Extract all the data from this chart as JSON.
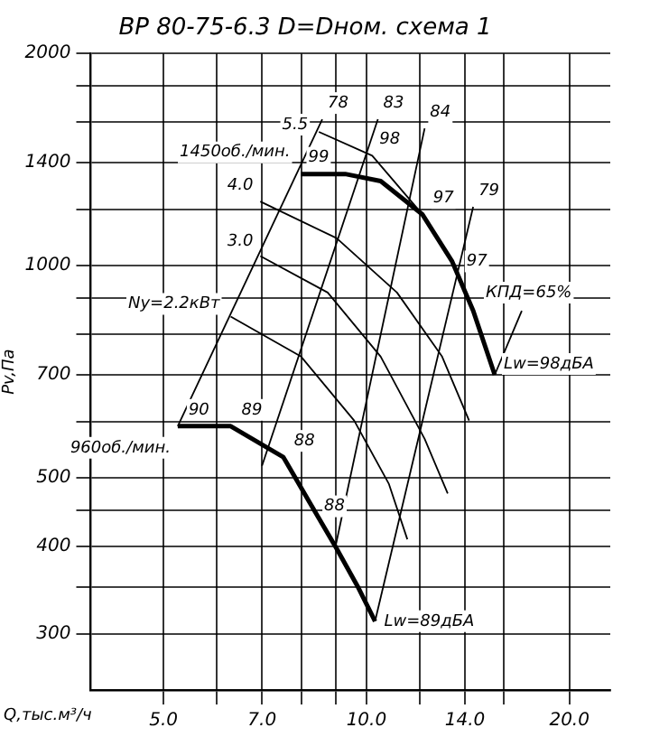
{
  "chart_data": {
    "type": "line",
    "title": "ВР 80-75-6.3 D=Dном. схема 1",
    "xlabel": "Q,тыс.м³/ч",
    "ylabel": "Pv,Па",
    "log": "xy",
    "grid": true,
    "legend": false,
    "marker": "none",
    "line_style": "solid",
    "xlim": [
      3.9,
      23
    ],
    "ylim": [
      250,
      2000
    ],
    "xticks": [
      {
        "value": 5,
        "label": "5.0"
      },
      {
        "value": 6,
        "label": null
      },
      {
        "value": 7,
        "label": "7.0"
      },
      {
        "value": 8,
        "label": null
      },
      {
        "value": 9,
        "label": null
      },
      {
        "value": 10,
        "label": "10.0"
      },
      {
        "value": 12,
        "label": null
      },
      {
        "value": 14,
        "label": "14.0"
      },
      {
        "value": 16,
        "label": null
      },
      {
        "value": 20,
        "label": "20.0"
      }
    ],
    "yticks": [
      300,
      {
        "value": 350,
        "label": null
      },
      400,
      {
        "value": 450,
        "label": null
      },
      500,
      {
        "value": 600,
        "label": null
      },
      700,
      {
        "value": 800,
        "label": null
      },
      {
        "value": 900,
        "label": null
      },
      1000,
      {
        "value": 1200,
        "label": null
      },
      1400,
      {
        "value": 1600,
        "label": null
      },
      {
        "value": 1800,
        "label": null
      },
      2000
    ],
    "series": [
      {
        "color": "#000000",
        "x": [
          8.0,
          9.3,
          10.5,
          12.1,
          13.4,
          14.4,
          15.5
        ],
        "values": [
          1349,
          1349,
          1318,
          1183,
          1014,
          863,
          700
        ]
      },
      {
        "color": "#000000",
        "x": [
          5.25,
          6.29,
          7.53,
          8.24,
          9.03,
          9.7,
          10.3
        ],
        "values": [
          592,
          592,
          535,
          461,
          397,
          351,
          313
        ]
      },
      {
        "color": "#000000",
        "x": [
          8.5,
          10.2,
          12.1
        ],
        "values": [
          1548,
          1432,
          1183
        ]
      },
      {
        "color": "#000000",
        "x": [
          6.96,
          9.03,
          11.1,
          12.95,
          14.2
        ],
        "values": [
          1233,
          1094,
          916,
          743,
          603
        ]
      },
      {
        "color": "#000000",
        "x": [
          6.96,
          8.76,
          10.5,
          12.2,
          13.2
        ],
        "values": [
          1032,
          916,
          743,
          568,
          475
        ]
      },
      {
        "color": "#000000",
        "x": [
          6.29,
          8.0,
          9.59,
          10.8,
          11.5
        ],
        "values": [
          847,
          743,
          603,
          490,
          409
        ]
      },
      {
        "color": "#000000",
        "x": [
          5.25,
          8.6
        ],
        "values": [
          592,
          1613
        ]
      },
      {
        "color": "#000000",
        "x": [
          7.0,
          10.4
        ],
        "values": [
          520,
          1613
        ]
      },
      {
        "color": "#000000",
        "x": [
          9.0,
          12.2
        ],
        "values": [
          400,
          1566
        ]
      },
      {
        "color": "#000000",
        "x": [
          10.3,
          14.4
        ],
        "values": [
          313,
          1212
        ]
      },
      {
        "color": "#000000",
        "x": [
          15.5,
          17.0
        ],
        "values": [
          700,
          863
        ]
      }
    ],
    "annotations": [
      {
        "text": "1450об./мин.",
        "x": 8.0,
        "y": 1349
      },
      {
        "text": "960об./мин.",
        "x": 5.25,
        "y": 592
      },
      {
        "text": "99",
        "x": 8.0,
        "y": 1349
      },
      {
        "text": "98",
        "x": 10.2,
        "y": 1432
      },
      {
        "text": "97",
        "x": 12.1,
        "y": 1183
      },
      {
        "text": "97",
        "x": 13.4,
        "y": 1014
      },
      {
        "text": "90",
        "x": 5.25,
        "y": 592
      },
      {
        "text": "89",
        "x": 6.29,
        "y": 592
      },
      {
        "text": "88",
        "x": 7.53,
        "y": 535
      },
      {
        "text": "88",
        "x": 8.24,
        "y": 461
      },
      {
        "text": "5.5",
        "x": 8.5,
        "y": 1548
      },
      {
        "text": "4.0",
        "x": 6.96,
        "y": 1233
      },
      {
        "text": "3.0",
        "x": 6.96,
        "y": 1032
      },
      {
        "text": "Ny=2.2кВт",
        "x": 6.29,
        "y": 847
      },
      {
        "text": "Lw=98дБА",
        "x": 15.5,
        "y": 700
      },
      {
        "text": "Lw=89дБА",
        "x": 10.3,
        "y": 313
      },
      {
        "text": "78",
        "x": 8.6,
        "y": 1613
      },
      {
        "text": "83",
        "x": 10.4,
        "y": 1613
      },
      {
        "text": "84",
        "x": 12.2,
        "y": 1566
      },
      {
        "text": "79",
        "x": 14.4,
        "y": 1212
      },
      {
        "text": "КПД=65%",
        "x": 17.0,
        "y": 863
      }
    ]
  }
}
